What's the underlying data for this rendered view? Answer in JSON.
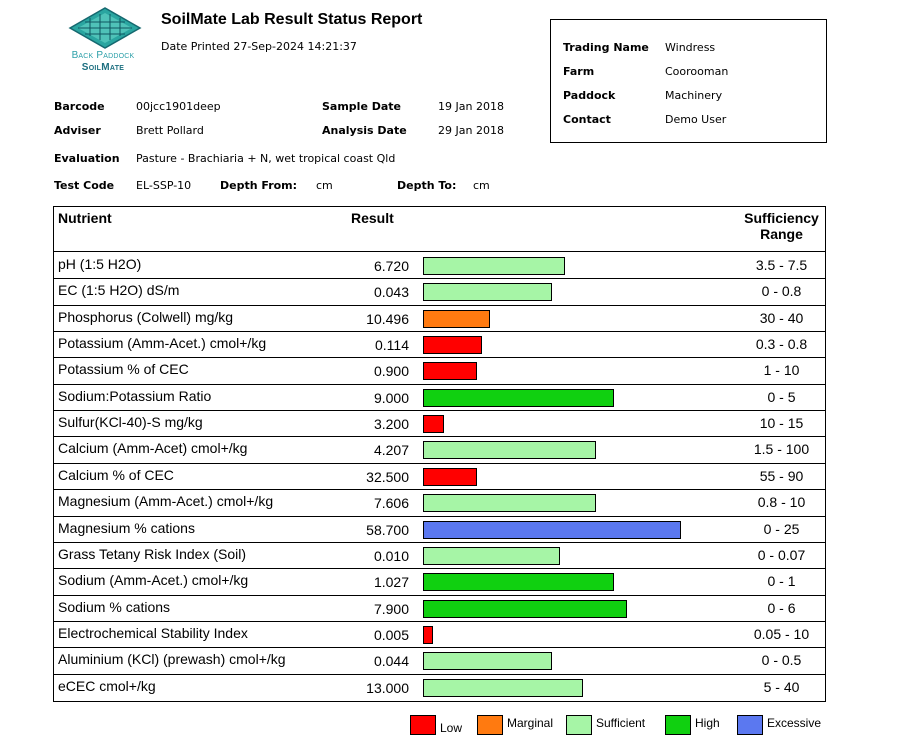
{
  "logo": {
    "line1": "Back Paddock",
    "line2": "SoilMate"
  },
  "report": {
    "title": "SoilMate Lab Result Status Report",
    "printed": "Date Printed 27-Sep-2024 14:21:37"
  },
  "sample": {
    "barcode_label": "Barcode",
    "barcode": "00jcc1901deep",
    "adviser_label": "Adviser",
    "adviser": "Brett Pollard",
    "sample_date_label": "Sample Date",
    "sample_date": "19 Jan 2018",
    "analysis_date_label": "Analysis Date",
    "analysis_date": "29 Jan 2018",
    "evaluation_label": "Evaluation",
    "evaluation": "Pasture - Brachiaria + N, wet tropical coast Qld",
    "test_code_label": "Test Code",
    "test_code": "EL-SSP-10",
    "depth_from_label": "Depth From:",
    "depth_from_unit": "cm",
    "depth_to_label": "Depth To:",
    "depth_to_unit": "cm"
  },
  "info": {
    "trading_name_label": "Trading Name",
    "trading_name": "Windress",
    "farm_label": "Farm",
    "farm": "Coorooman",
    "paddock_label": "Paddock",
    "paddock": "Machinery",
    "contact_label": "Contact",
    "contact": "Demo User"
  },
  "table": {
    "col_nutrient": "Nutrient",
    "col_result": "Result",
    "col_range_1": "Sufficiency",
    "col_range_2": "Range"
  },
  "colors": {
    "Low": "#ff0000",
    "Marginal": "#ff7a10",
    "Sufficient": "#a6f5a6",
    "High": "#10d010",
    "Excessive": "#5b78f0"
  },
  "chart_data": {
    "type": "bar",
    "categories": [
      "pH (1:5 H2O)",
      "EC (1:5 H2O)  dS/m",
      "Phosphorus (Colwell)  mg/kg",
      "Potassium (Amm-Acet.) cmol+/kg",
      "Potassium % of CEC",
      "Sodium:Potassium Ratio",
      "Sulfur(KCl-40)-S mg/kg",
      "Calcium (Amm-Acet) cmol+/kg",
      "Calcium % of CEC",
      "Magnesium (Amm-Acet.)  cmol+/kg",
      "Magnesium % cations",
      "Grass Tetany Risk Index (Soil)",
      "Sodium (Amm-Acet.) cmol+/kg",
      "Sodium % cations",
      "Electrochemical Stability Index",
      "Aluminium (KCl) (prewash) cmol+/kg",
      "eCEC  cmol+/kg"
    ],
    "values": [
      "6.720",
      "0.043",
      "10.496",
      "0.114",
      "0.900",
      "9.000",
      "3.200",
      "4.207",
      "32.500",
      "7.606",
      "58.700",
      "0.010",
      "1.027",
      "7.900",
      "0.005",
      "0.044",
      "13.000"
    ],
    "ranges": [
      "3.5 - 7.5",
      "0 - 0.8",
      "30 - 40",
      "0.3 - 0.8",
      "1 - 10",
      "0 - 5",
      "10 - 15",
      "1.5 - 100",
      "55 - 90",
      "0.8 - 10",
      "0 - 25",
      "0 - 0.07",
      "0 - 1",
      "0 - 6",
      "0.05 - 10",
      "0 - 0.5",
      "5 - 40"
    ],
    "status": [
      "Sufficient",
      "Sufficient",
      "Marginal",
      "Low",
      "Low",
      "High",
      "Low",
      "Sufficient",
      "Low",
      "Sufficient",
      "Excessive",
      "Sufficient",
      "High",
      "High",
      "Low",
      "Sufficient",
      "Sufficient"
    ],
    "bar_level": [
      0.55,
      0.5,
      0.26,
      0.23,
      0.21,
      0.74,
      0.08,
      0.67,
      0.21,
      0.67,
      1.0,
      0.53,
      0.74,
      0.79,
      0.04,
      0.5,
      0.62
    ],
    "legend": [
      "Low",
      "Marginal",
      "Sufficient",
      "High",
      "Excessive"
    ]
  }
}
